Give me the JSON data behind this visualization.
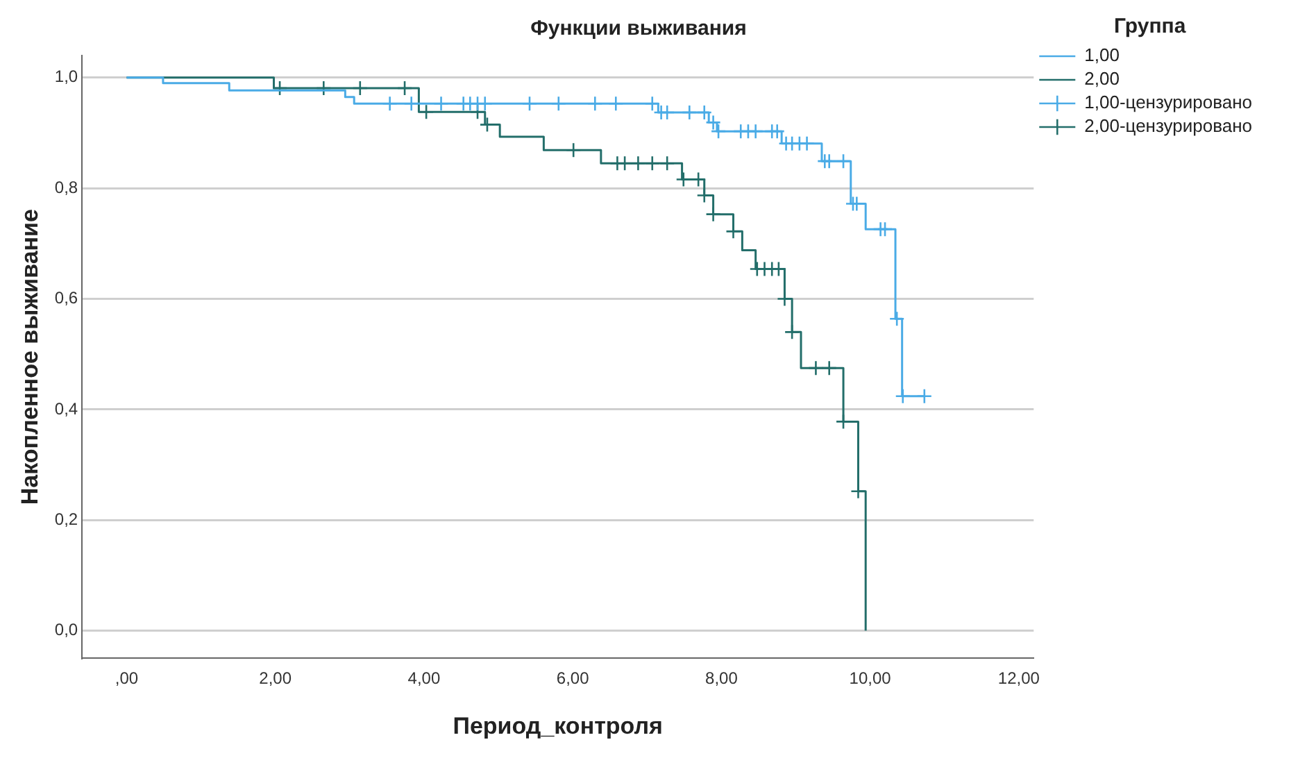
{
  "chart_data": {
    "type": "step",
    "title": "Функции выживания",
    "xlabel": "Период_контроля",
    "ylabel": "Накопленное выживание",
    "legend_title": "Группа",
    "legend": "right",
    "grid": "y",
    "xlim": [
      -0.6,
      12.2
    ],
    "xticks": [
      {
        "value": 0,
        "label": ",00"
      },
      {
        "value": 2,
        "label": "2,00"
      },
      {
        "value": 4,
        "label": "4,00"
      },
      {
        "value": 6,
        "label": "6,00"
      },
      {
        "value": 8,
        "label": "8,00"
      },
      {
        "value": 10,
        "label": "10,00"
      },
      {
        "value": 12,
        "label": "12,00"
      }
    ],
    "ylim": [
      -0.05,
      1.04
    ],
    "yticks": [
      {
        "value": 0,
        "label": "0,0"
      },
      {
        "value": 0.2,
        "label": "0,2"
      },
      {
        "value": 0.4,
        "label": "0,4"
      },
      {
        "value": 0.6,
        "label": "0,6"
      },
      {
        "value": 0.8,
        "label": "0,8"
      },
      {
        "value": 1,
        "label": "1,0"
      }
    ],
    "series": [
      {
        "name": "1,00",
        "marker": "none",
        "color": "#4aabe6",
        "x": [
          0,
          0.49,
          1.38,
          2.94,
          3.06,
          7.15,
          7.83,
          7.94,
          8.81,
          9.35,
          9.74,
          9.94,
          10.34,
          10.43,
          10.73
        ],
        "values": [
          1,
          0.99,
          0.977,
          0.965,
          0.953,
          0.937,
          0.919,
          0.903,
          0.881,
          0.849,
          0.772,
          0.726,
          0.564,
          0.424,
          0.424
        ]
      },
      {
        "name": "2,00",
        "marker": "none",
        "color": "#236e6a",
        "x": [
          0,
          1.98,
          3.93,
          4.82,
          5.02,
          5.61,
          6.38,
          7.47,
          7.77,
          7.89,
          8.16,
          8.28,
          8.46,
          8.85,
          8.95,
          9.07,
          9.64,
          9.84,
          9.94
        ],
        "values": [
          1,
          0.981,
          0.938,
          0.915,
          0.893,
          0.869,
          0.845,
          0.816,
          0.787,
          0.753,
          0.722,
          0.688,
          0.654,
          0.6,
          0.54,
          0.475,
          0.378,
          0.252,
          0
        ]
      },
      {
        "name": "1,00-цензурировано",
        "type": "scatter",
        "marker": "cross",
        "color": "#4aabe6",
        "x": [
          3.54,
          3.83,
          4.23,
          4.53,
          4.62,
          4.72,
          4.82,
          5.42,
          5.81,
          6.3,
          6.58,
          7.07,
          7.19,
          7.27,
          7.57,
          7.77,
          7.89,
          7.96,
          8.26,
          8.36,
          8.46,
          8.68,
          8.75,
          8.87,
          8.95,
          9.05,
          9.15,
          9.39,
          9.45,
          9.64,
          9.77,
          9.82,
          10.14,
          10.2,
          10.36,
          10.44,
          10.73
        ],
        "values": [
          0.953,
          0.953,
          0.953,
          0.953,
          0.953,
          0.953,
          0.953,
          0.953,
          0.953,
          0.953,
          0.953,
          0.953,
          0.937,
          0.937,
          0.937,
          0.937,
          0.919,
          0.903,
          0.903,
          0.903,
          0.903,
          0.903,
          0.903,
          0.881,
          0.881,
          0.881,
          0.881,
          0.849,
          0.849,
          0.849,
          0.772,
          0.772,
          0.726,
          0.726,
          0.564,
          0.424,
          0.424
        ]
      },
      {
        "name": "2,00-цензурировано",
        "type": "scatter",
        "marker": "cross",
        "color": "#236e6a",
        "x": [
          2.06,
          2.65,
          3.14,
          3.74,
          4.03,
          4.72,
          4.85,
          6.01,
          6.6,
          6.7,
          6.88,
          7.07,
          7.27,
          7.49,
          7.69,
          7.77,
          7.89,
          8.16,
          8.48,
          8.58,
          8.68,
          8.77,
          8.85,
          8.95,
          9.27,
          9.45,
          9.64,
          9.84
        ],
        "values": [
          0.981,
          0.981,
          0.981,
          0.981,
          0.938,
          0.938,
          0.915,
          0.869,
          0.845,
          0.845,
          0.845,
          0.845,
          0.845,
          0.816,
          0.816,
          0.787,
          0.753,
          0.722,
          0.654,
          0.654,
          0.654,
          0.654,
          0.6,
          0.54,
          0.475,
          0.475,
          0.378,
          0.252
        ]
      }
    ]
  }
}
